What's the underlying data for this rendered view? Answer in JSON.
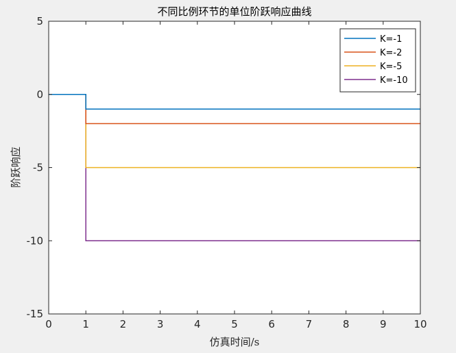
{
  "chart_data": {
    "type": "line",
    "title": "不同比例环节的单位阶跃响应曲线",
    "xlabel": "仿真时间/s",
    "ylabel": "阶跃响应",
    "xlim": [
      0,
      10
    ],
    "ylim": [
      -15,
      5
    ],
    "xticks": [
      0,
      1,
      2,
      3,
      4,
      5,
      6,
      7,
      8,
      9,
      10
    ],
    "yticks": [
      5,
      0,
      -5,
      -10,
      -15
    ],
    "grid": false,
    "legend_position": "top-right",
    "series": [
      {
        "name": "K=-1",
        "color": "#0072BD",
        "x": [
          0,
          1,
          1,
          10
        ],
        "y": [
          0,
          0,
          -1,
          -1
        ]
      },
      {
        "name": "K=-2",
        "color": "#D95319",
        "x": [
          0,
          1,
          1,
          10
        ],
        "y": [
          0,
          0,
          -2,
          -2
        ]
      },
      {
        "name": "K=-5",
        "color": "#EDB120",
        "x": [
          0,
          1,
          1,
          10
        ],
        "y": [
          0,
          0,
          -5,
          -5
        ]
      },
      {
        "name": "K=-10",
        "color": "#7E2F8E",
        "x": [
          0,
          1,
          1,
          10
        ],
        "y": [
          0,
          0,
          -10,
          -10
        ]
      }
    ]
  }
}
